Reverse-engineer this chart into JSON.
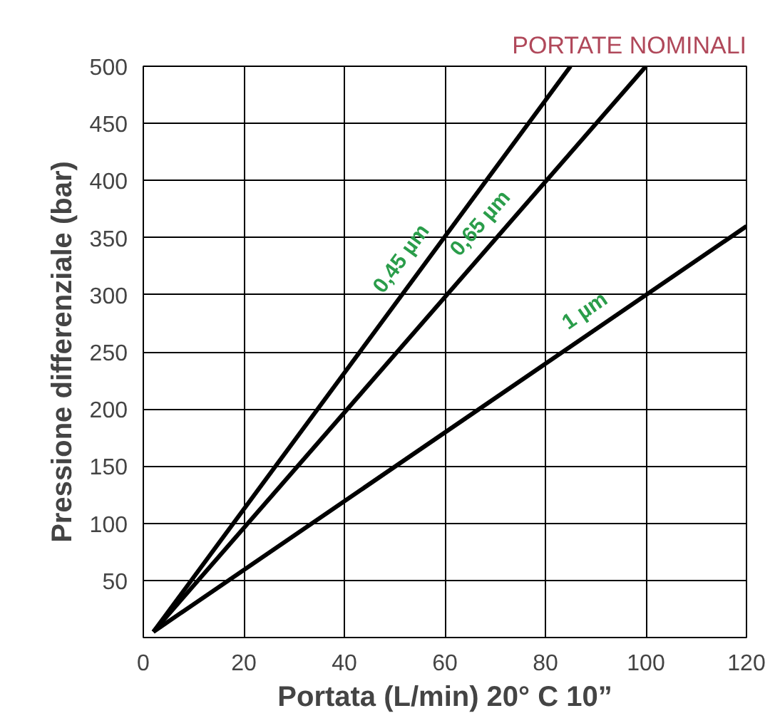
{
  "chart_data": {
    "type": "line",
    "title": "PORTATE NOMINALI",
    "xlabel": "Portata (L/min) 20° C 10”",
    "ylabel": "Pressione differenziale (bar)",
    "xlim": [
      0,
      120
    ],
    "ylim": [
      0,
      500
    ],
    "xticks": [
      0,
      20,
      40,
      60,
      80,
      100,
      120
    ],
    "yticks": [
      50,
      100,
      150,
      200,
      250,
      300,
      350,
      400,
      450,
      500
    ],
    "grid": true,
    "line_style": "solid",
    "marker": "none",
    "series": [
      {
        "name": "0,45 µm",
        "color": "#000000",
        "x": [
          2,
          85
        ],
        "values": [
          5,
          500
        ]
      },
      {
        "name": "0,65 µm",
        "color": "#000000",
        "x": [
          2,
          100
        ],
        "values": [
          5,
          500
        ]
      },
      {
        "name": "1 µm",
        "color": "#000000",
        "x": [
          2,
          120
        ],
        "values": [
          5,
          360
        ]
      }
    ]
  }
}
